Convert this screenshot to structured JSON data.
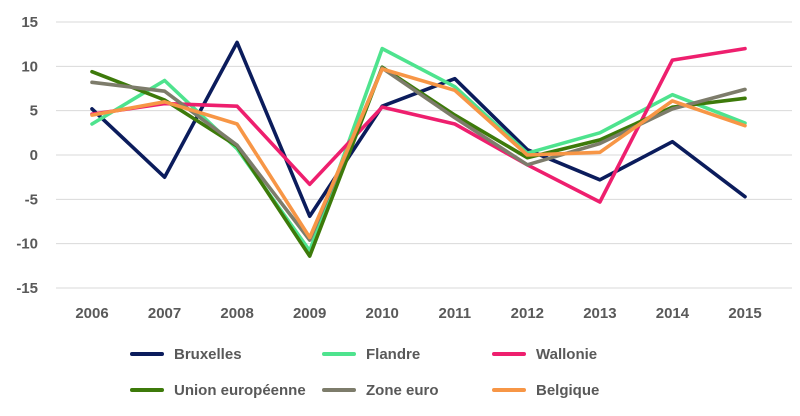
{
  "chart_data": {
    "type": "line",
    "title": "",
    "xlabel": "",
    "ylabel": "",
    "x": [
      "2006",
      "2007",
      "2008",
      "2009",
      "2010",
      "2011",
      "2012",
      "2013",
      "2014",
      "2015"
    ],
    "ylim": [
      -15,
      15
    ],
    "yticks": [
      "15",
      "10",
      "5",
      "0",
      "-5",
      "-10",
      "-15"
    ],
    "ytick_values": [
      15,
      10,
      5,
      0,
      -5,
      -10,
      -15
    ],
    "grid": "horizontal-only",
    "legend_placement": "bottom",
    "series": [
      {
        "name": "Bruxelles",
        "color": "#0b1c5c",
        "values": [
          5.2,
          -2.5,
          12.7,
          -6.9,
          5.5,
          8.6,
          0.6,
          -2.8,
          1.5,
          -4.7
        ]
      },
      {
        "name": "Flandre",
        "color": "#4ee38e",
        "values": [
          3.5,
          8.4,
          0.7,
          -10.8,
          12.0,
          7.7,
          0.2,
          2.5,
          6.8,
          3.6
        ]
      },
      {
        "name": "Wallonie",
        "color": "#ee1f6e",
        "values": [
          4.6,
          5.8,
          5.5,
          -3.3,
          5.4,
          3.5,
          -1.1,
          -5.3,
          10.7,
          12.0
        ]
      },
      {
        "name": "Union européenne",
        "color": "#3d7a0a",
        "values": [
          9.4,
          6.2,
          1.0,
          -11.4,
          9.9,
          4.5,
          -0.3,
          1.7,
          5.4,
          6.4
        ]
      },
      {
        "name": "Zone euro",
        "color": "#7d7c6b",
        "values": [
          8.2,
          7.2,
          1.1,
          -9.6,
          9.8,
          4.2,
          -1.1,
          1.3,
          5.2,
          7.4
        ]
      },
      {
        "name": "Belgique",
        "color": "#f79646",
        "values": [
          4.5,
          6.0,
          3.5,
          -9.3,
          9.7,
          7.3,
          0.0,
          0.3,
          6.1,
          3.3
        ]
      }
    ]
  }
}
